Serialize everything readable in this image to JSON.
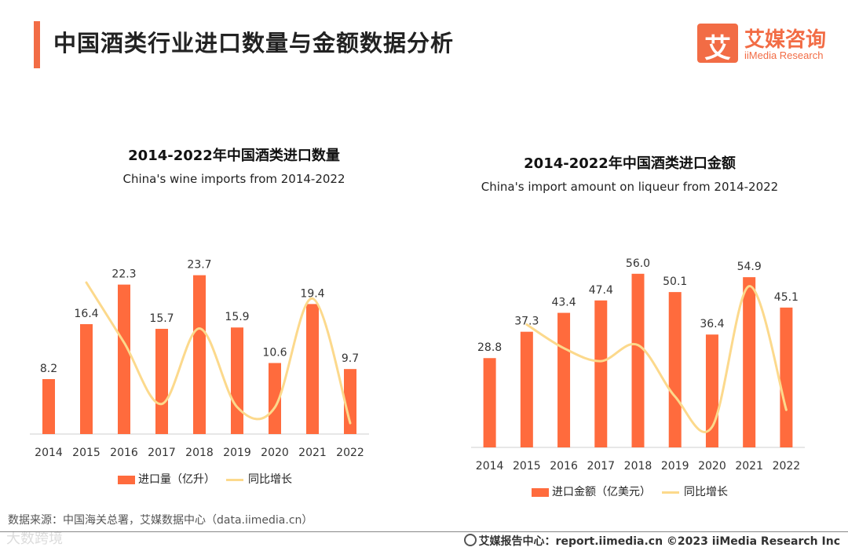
{
  "header": {
    "title": "中国酒类行业进口数量与金额数据分析"
  },
  "logo": {
    "cn": "艾媒咨询",
    "en": "iiMedia Research",
    "mark": "艾"
  },
  "colors": {
    "bar": "#ff6b3d",
    "line": "#fcd98c",
    "accent": "#f26c45"
  },
  "chart_data": [
    {
      "type": "bar",
      "title": "2014-2022年中国酒类进口数量",
      "subtitle": "China's wine imports from 2014-2022",
      "categories": [
        "2014",
        "2015",
        "2016",
        "2017",
        "2018",
        "2019",
        "2020",
        "2021",
        "2022"
      ],
      "series": [
        {
          "name": "进口量（亿升）",
          "values": [
            8.2,
            16.4,
            22.3,
            15.7,
            23.7,
            15.9,
            10.6,
            19.4,
            9.7
          ]
        }
      ],
      "line_series": {
        "name": "同比增长",
        "values": [
          null,
          100.0,
          36.0,
          -29.6,
          51.0,
          -32.9,
          -33.3,
          83.0,
          -50.0
        ]
      },
      "ylim": [
        0,
        26
      ],
      "legend": "bottom"
    },
    {
      "type": "bar",
      "title": "2014-2022年中国酒类进口金额",
      "subtitle": "China's import amount on liqueur from 2014-2022",
      "categories": [
        "2014",
        "2015",
        "2016",
        "2017",
        "2018",
        "2019",
        "2020",
        "2021",
        "2022"
      ],
      "series": [
        {
          "name": "进口金额（亿美元）",
          "values": [
            28.8,
            37.3,
            43.4,
            47.4,
            56.0,
            50.1,
            36.4,
            54.9,
            45.1
          ]
        }
      ],
      "line_series": {
        "name": "同比增长",
        "values": [
          null,
          29.5,
          16.4,
          9.2,
          18.1,
          -10.5,
          -27.3,
          50.8,
          -17.9
        ]
      },
      "ylim": [
        0,
        60
      ],
      "legend": "bottom"
    }
  ],
  "source": "数据来源：中国海关总署，艾媒数据中心（data.iimedia.cn）",
  "watermark": "大数跨境",
  "footer": "艾媒报告中心：report.iimedia.cn  ©2023  iiMedia Research  Inc"
}
